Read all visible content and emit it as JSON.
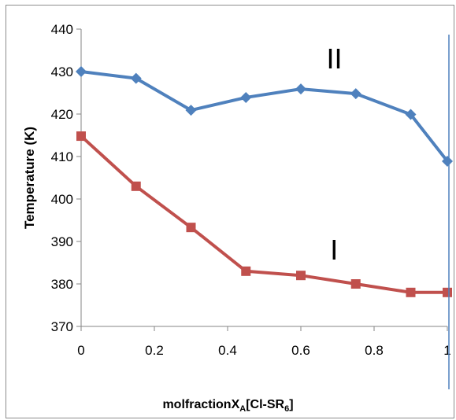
{
  "chart_data": {
    "type": "line",
    "xlabel_main": "molfractionX",
    "xlabel_sub_a": "A",
    "xlabel_mid": "[Cl-SR",
    "xlabel_sub_6": "6",
    "xlabel_end": "]",
    "ylabel": "Temperature (K)",
    "x_ticks": [
      "0",
      "0.2",
      "0.4",
      "0.6",
      "0.8",
      "1"
    ],
    "y_ticks": [
      "370",
      "380",
      "390",
      "400",
      "410",
      "420",
      "430",
      "440"
    ],
    "xlim": [
      0,
      1
    ],
    "ylim": [
      370,
      440
    ],
    "grid": false,
    "x": [
      0,
      0.15,
      0.3,
      0.45,
      0.6,
      0.75,
      0.9,
      1.0
    ],
    "series": [
      {
        "label": "II",
        "color": "#4f81bd",
        "marker": "diamond",
        "values": [
          430,
          428.4,
          420.9,
          423.9,
          425.9,
          424.8,
          419.9,
          408.9
        ]
      },
      {
        "label": "I",
        "color": "#c0504d",
        "marker": "square",
        "values": [
          414.8,
          403.0,
          393.3,
          383.0,
          382.0,
          380.0,
          378.0,
          378.0
        ]
      }
    ],
    "annotations": [
      {
        "text": "II",
        "x": 0.67,
        "y": 433
      },
      {
        "text": "I",
        "x": 0.68,
        "y": 388
      }
    ],
    "vertical_line": {
      "x": 1.0,
      "color": "#4f81bd"
    }
  }
}
